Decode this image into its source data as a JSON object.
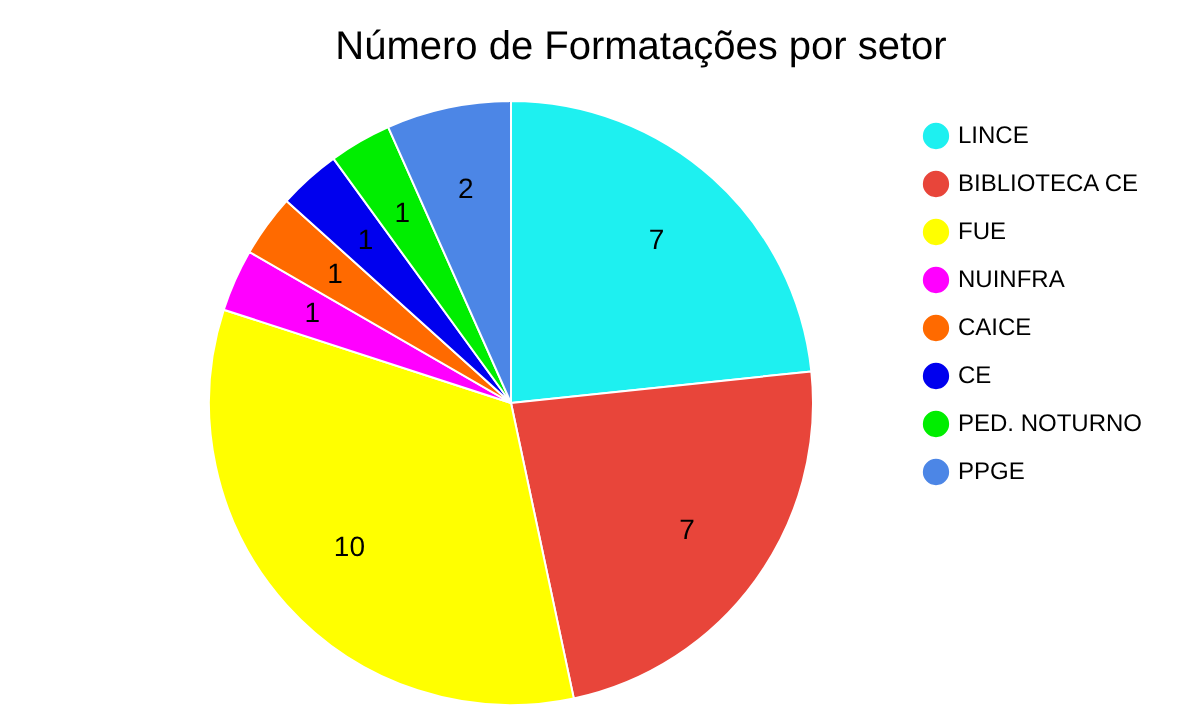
{
  "chart_data": {
    "type": "pie",
    "title": "Número de Formatações por setor",
    "categories": [
      "LINCE",
      "BIBLIOTECA CE",
      "FUE",
      "NUINFRA",
      "CAICE",
      "CE",
      "PED. NOTURNO",
      "PPGE"
    ],
    "values": [
      7,
      7,
      10,
      1,
      1,
      1,
      1,
      2
    ],
    "colors": [
      "#1ef0f0",
      "#e8453a",
      "#ffff00",
      "#ff00ff",
      "#ff6a00",
      "#0000ee",
      "#00ee00",
      "#4c86e6"
    ],
    "data_labels": true,
    "legend": "right"
  }
}
